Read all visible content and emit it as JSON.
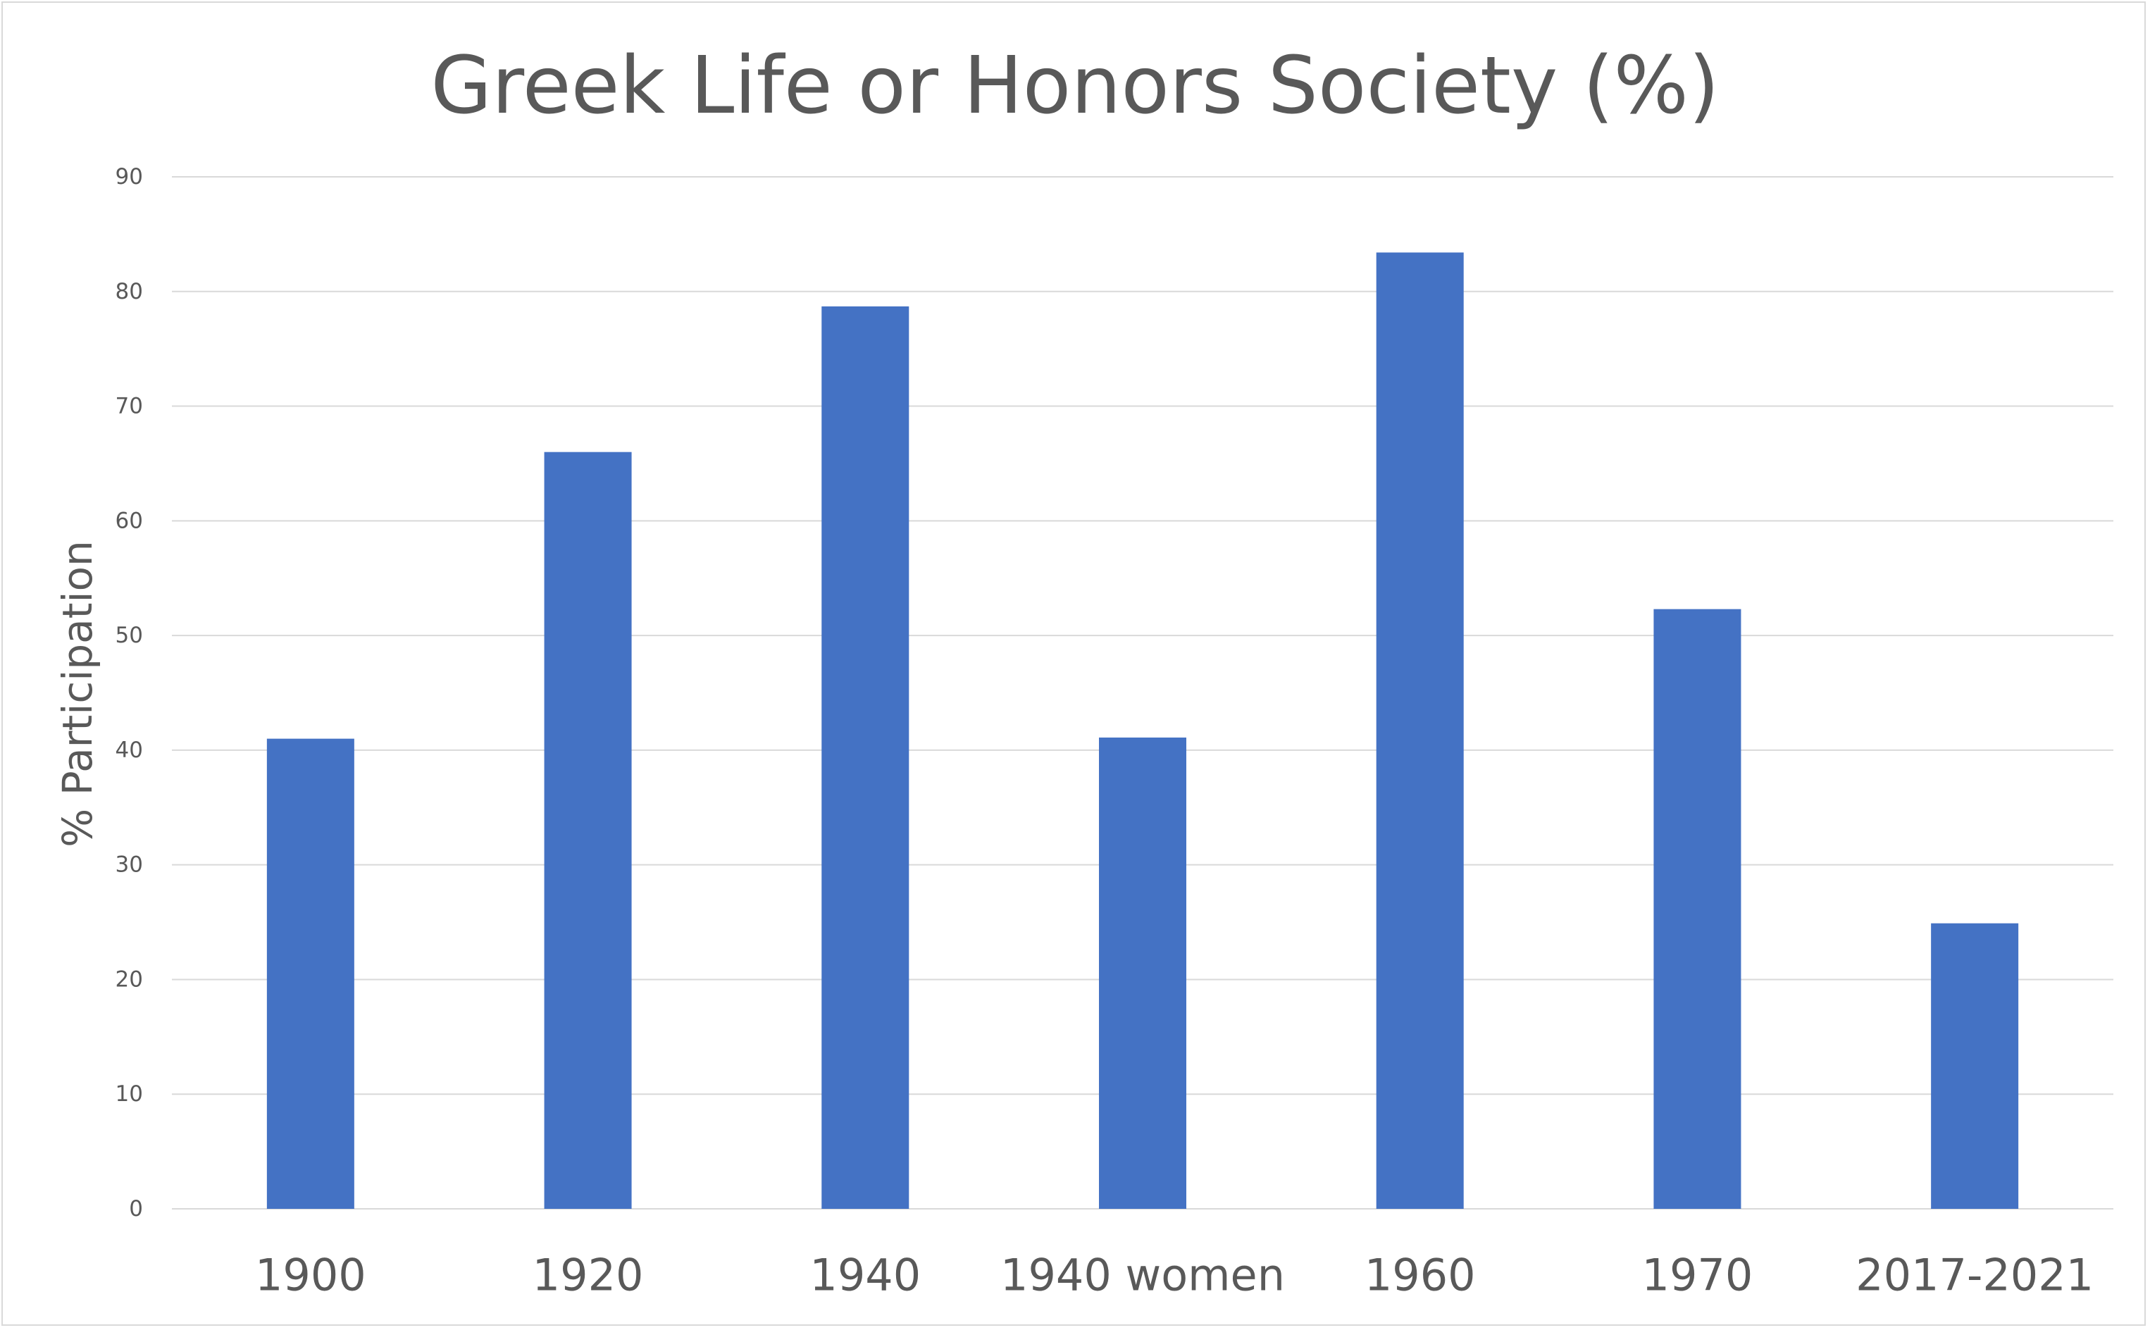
{
  "chart_data": {
    "type": "bar",
    "title": "Greek Life or Honors Society (%)",
    "ylabel": "% Participation",
    "xlabel": "",
    "categories": [
      "1900",
      "1920",
      "1940",
      "1940 women",
      "1960",
      "1970",
      "2017-2021"
    ],
    "values": [
      41,
      66,
      78.7,
      41.1,
      83.4,
      52.3,
      24.9
    ],
    "ylim": [
      0,
      90
    ],
    "yticks": [
      0,
      10,
      20,
      30,
      40,
      50,
      60,
      70,
      80,
      90
    ],
    "grid": true,
    "legend": "none",
    "colors": {
      "bar": "#4472C4",
      "grid": "#d9d9d9",
      "text": "#595959"
    }
  }
}
